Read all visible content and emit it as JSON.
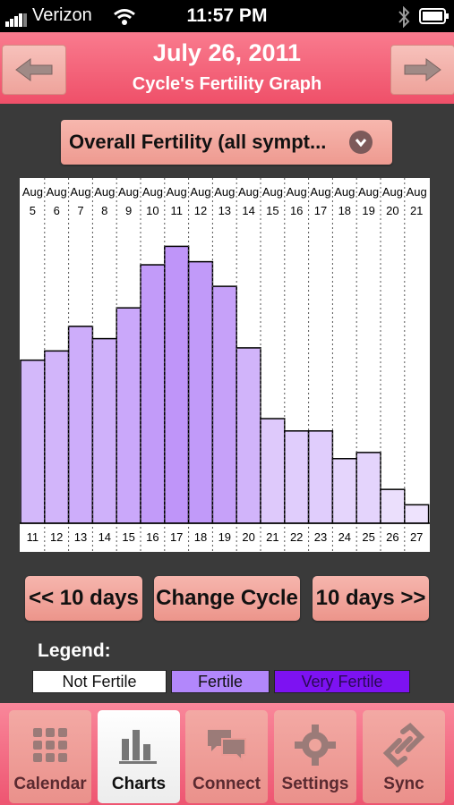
{
  "status_bar": {
    "carrier": "Verizon",
    "time": "11:57 PM"
  },
  "header": {
    "title": "July 26, 2011",
    "subtitle": "Cycle's Fertility Graph",
    "prev_icon": "left-arrow-icon",
    "next_icon": "right-arrow-icon"
  },
  "dropdown": {
    "selected": "Overall Fertility (all sympt...",
    "icon": "chevron-down-icon"
  },
  "chart_data": {
    "type": "bar",
    "title": "",
    "top_labels": [
      {
        "m": "Aug",
        "d": "5"
      },
      {
        "m": "Aug",
        "d": "6"
      },
      {
        "m": "Aug",
        "d": "7"
      },
      {
        "m": "Aug",
        "d": "8"
      },
      {
        "m": "Aug",
        "d": "9"
      },
      {
        "m": "Aug",
        "d": "10"
      },
      {
        "m": "Aug",
        "d": "11"
      },
      {
        "m": "Aug",
        "d": "12"
      },
      {
        "m": "Aug",
        "d": "13"
      },
      {
        "m": "Aug",
        "d": "14"
      },
      {
        "m": "Aug",
        "d": "15"
      },
      {
        "m": "Aug",
        "d": "16"
      },
      {
        "m": "Aug",
        "d": "17"
      },
      {
        "m": "Aug",
        "d": "18"
      },
      {
        "m": "Aug",
        "d": "19"
      },
      {
        "m": "Aug",
        "d": "20"
      },
      {
        "m": "Aug",
        "d": "21"
      }
    ],
    "categories": [
      "11",
      "12",
      "13",
      "14",
      "15",
      "16",
      "17",
      "18",
      "19",
      "20",
      "21",
      "22",
      "23",
      "24",
      "25",
      "26",
      "27"
    ],
    "values": [
      53,
      56,
      64,
      60,
      70,
      84,
      90,
      85,
      77,
      57,
      34,
      30,
      30,
      21,
      23,
      11,
      6
    ],
    "ylim": [
      0,
      100
    ],
    "grid": true
  },
  "buttons": {
    "prev": "<< 10 days",
    "change": "Change Cycle",
    "next": "10 days >>"
  },
  "legend": {
    "title": "Legend:",
    "items": [
      {
        "label": "Not Fertile",
        "color": "#ffffff"
      },
      {
        "label": "Fertile",
        "color": "#b287fb"
      },
      {
        "label": "Very Fertile",
        "color": "#7d12f2"
      }
    ]
  },
  "tabs": [
    {
      "label": "Calendar",
      "icon": "calendar-icon",
      "active": false
    },
    {
      "label": "Charts",
      "icon": "bar-chart-icon",
      "active": true
    },
    {
      "label": "Connect",
      "icon": "chat-bubbles-icon",
      "active": false
    },
    {
      "label": "Settings",
      "icon": "gear-icon",
      "active": false
    },
    {
      "label": "Sync",
      "icon": "sync-link-icon",
      "active": false
    }
  ]
}
